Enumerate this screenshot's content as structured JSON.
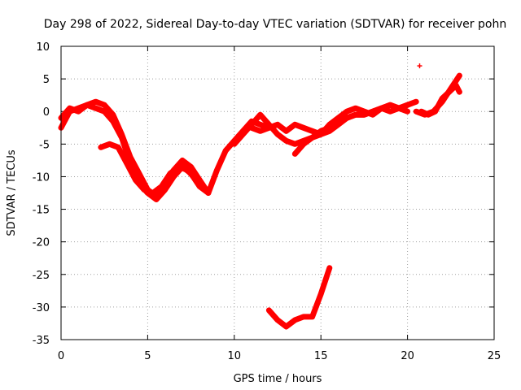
{
  "chart_data": {
    "type": "scatter",
    "title": "Day 298 of 2022, Sidereal Day-to-day VTEC variation (SDTVAR) for receiver pohn",
    "xlabel": "GPS time / hours",
    "ylabel": "SDTVAR / TECUs",
    "xlim": [
      0,
      25
    ],
    "ylim": [
      -35,
      10
    ],
    "xticks": [
      0,
      5,
      10,
      15,
      20,
      25
    ],
    "yticks": [
      10,
      5,
      0,
      -5,
      -10,
      -15,
      -20,
      -25,
      -30,
      -35
    ],
    "grid": true,
    "color": "#ff0000",
    "series": [
      {
        "name": "track-1",
        "x": [
          0,
          0.5,
          1,
          1.5,
          2,
          2.5,
          3,
          3.5,
          4,
          4.5,
          5,
          5.5,
          6,
          6.5,
          7,
          7.5,
          8,
          8.5,
          9,
          9.5,
          10,
          10.5,
          11,
          11.5,
          12
        ],
        "y": [
          -2.5,
          0,
          0.5,
          1,
          1.5,
          1,
          -0.5,
          -3.5,
          -7,
          -9.5,
          -12,
          -13,
          -11,
          -9,
          -7.5,
          -8.5,
          -10.5,
          -12.5,
          -9,
          -6,
          -4.5,
          -3,
          -1.5,
          -2,
          -2.5
        ]
      },
      {
        "name": "track-2",
        "x": [
          0,
          0.5,
          1,
          1.5,
          2,
          2.5,
          3,
          3.5,
          4,
          4.5,
          5,
          5.5,
          6,
          6.5,
          7,
          7.5,
          8,
          8.5
        ],
        "y": [
          -1,
          0.5,
          0,
          1,
          0.5,
          0,
          -1.5,
          -4,
          -8,
          -11,
          -12.5,
          -13.5,
          -12,
          -10,
          -8.5,
          -9.5,
          -11.5,
          -12.5
        ]
      },
      {
        "name": "track-3",
        "x": [
          2.3,
          2.8,
          3.3,
          3.8,
          4.3,
          4.8,
          5.3,
          5.8,
          6.3,
          6.8,
          7.3,
          7.8,
          8.3
        ],
        "y": [
          -5.5,
          -5,
          -5.5,
          -8,
          -10.5,
          -12,
          -12.5,
          -11.5,
          -9.5,
          -8.5,
          -9,
          -10.5,
          -12
        ]
      },
      {
        "name": "track-4",
        "x": [
          10,
          10.5,
          11,
          11.5,
          12,
          12.5,
          13,
          13.5,
          14,
          14.5,
          15,
          15.5,
          16,
          16.5,
          17,
          17.5,
          18,
          18.5,
          19,
          19.5,
          20,
          20.5
        ],
        "y": [
          -5,
          -3.5,
          -2,
          -0.5,
          -2,
          -3.5,
          -4.5,
          -5,
          -4.5,
          -4,
          -3,
          -2.5,
          -1.5,
          -1,
          -0.5,
          -0.5,
          0,
          0.5,
          1,
          0.5,
          1,
          1.5
        ]
      },
      {
        "name": "track-5",
        "x": [
          11,
          11.5,
          12,
          12.5,
          13,
          13.5,
          14,
          14.5,
          15,
          15.5,
          16,
          16.5,
          17,
          17.5,
          18,
          18.5,
          19,
          19.5,
          20
        ],
        "y": [
          -2.5,
          -3,
          -2.5,
          -2,
          -3,
          -2,
          -2.5,
          -3,
          -3.5,
          -2,
          -1,
          0,
          0.5,
          0,
          -0.5,
          0.5,
          1,
          0.5,
          0
        ]
      },
      {
        "name": "track-6",
        "x": [
          13.5,
          14,
          14.5,
          15,
          15.5,
          16,
          16.5,
          17,
          17.5,
          18,
          18.5,
          19,
          19.5,
          20
        ],
        "y": [
          -6.5,
          -5,
          -4,
          -3.5,
          -3,
          -2,
          -1,
          -0.5,
          -0.5,
          0,
          0.5,
          0,
          0.5,
          1
        ]
      },
      {
        "name": "track-7",
        "x": [
          20.5,
          21,
          21.5,
          22,
          22.5,
          23
        ],
        "y": [
          0,
          -0.5,
          0,
          1.5,
          3.5,
          5.5
        ]
      },
      {
        "name": "track-8",
        "x": [
          20.8,
          21.2,
          21.6,
          22,
          22.4,
          22.8,
          23
        ],
        "y": [
          0,
          -0.5,
          0,
          2,
          3,
          4,
          3
        ]
      },
      {
        "name": "track-9",
        "x": [
          12,
          12.5,
          13,
          13.5,
          14,
          14.5,
          15,
          15.5
        ],
        "y": [
          -30.5,
          -32,
          -33,
          -32,
          -31.5,
          -31.5,
          -28,
          -24
        ]
      },
      {
        "name": "outlier",
        "x": [
          20.7
        ],
        "y": [
          7
        ],
        "point": true
      }
    ]
  }
}
